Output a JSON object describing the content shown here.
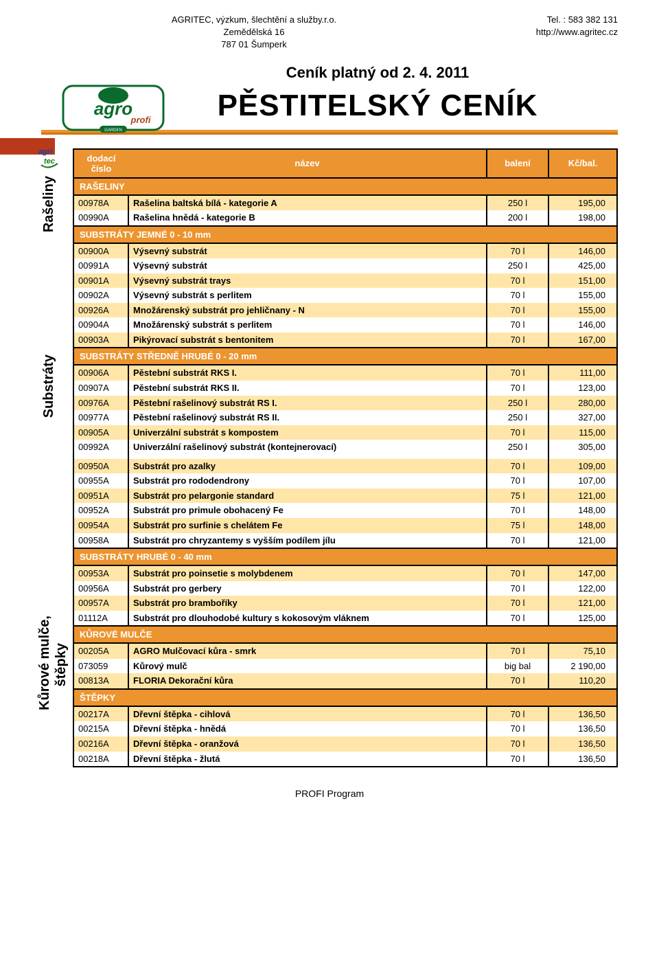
{
  "header": {
    "company": "AGRITEC, výzkum, šlechtění a služby.r.o.",
    "addr1": "Zemědělská 16",
    "addr2": "787 01 Šumperk",
    "tel": "Tel. : 583 382 131",
    "web": "http://www.agritec.cz"
  },
  "title": {
    "valid_from": "Ceník platný od 2. 4. 2011",
    "main": "PĚSTITELSKÝ CENÍK"
  },
  "side": {
    "raseliny": "Rašeliny",
    "substraty": "Substráty",
    "kurove": "Kůrové mulče,",
    "stepky": "štěpky"
  },
  "columns": {
    "code1": "dodací",
    "code2": "číslo",
    "name": "název",
    "pack": "balení",
    "price": "Kč/bal."
  },
  "sections": [
    {
      "title": "RAŠELINY",
      "rows": [
        {
          "c": "00978A",
          "n": "Rašelina baltská bílá - kategorie A",
          "p": "250 l",
          "v": "195,00"
        },
        {
          "c": "00990A",
          "n": "Rašelina hnědá - kategorie B",
          "p": "200 l",
          "v": "198,00"
        }
      ]
    },
    {
      "title": "SUBSTRÁTY JEMNÉ 0 - 10 mm",
      "rows": [
        {
          "c": "00900A",
          "n": "Výsevný substrát",
          "p": "70 l",
          "v": "146,00"
        },
        {
          "c": "00991A",
          "n": "Výsevný substrát",
          "p": "250 l",
          "v": "425,00"
        },
        {
          "c": "00901A",
          "n": "Výsevný substrát trays",
          "p": "70 l",
          "v": "151,00"
        },
        {
          "c": "00902A",
          "n": "Výsevný substrát s perlitem",
          "p": "70 l",
          "v": "155,00"
        },
        {
          "c": "00926A",
          "n": "Množárenský substrát pro jehličnany - N",
          "p": "70 l",
          "v": "155,00"
        },
        {
          "c": "00904A",
          "n": "Množárenský substrát s perlitem",
          "p": "70 l",
          "v": "146,00"
        },
        {
          "c": "00903A",
          "n": "Pikýrovací substrát s bentonitem",
          "p": "70 l",
          "v": "167,00"
        }
      ]
    },
    {
      "title": "SUBSTRÁTY STŘEDNĚ HRUBÉ 0 - 20 mm",
      "groups": [
        [
          {
            "c": "00906A",
            "n": "Pěstební substrát RKS I.",
            "p": "70 l",
            "v": "111,00"
          },
          {
            "c": "00907A",
            "n": "Pěstební substrát RKS II.",
            "p": "70 l",
            "v": "123,00"
          },
          {
            "c": "00976A",
            "n": "Pěstební rašelinový substrát RS I.",
            "p": "250 l",
            "v": "280,00"
          },
          {
            "c": "00977A",
            "n": "Pěstební rašelinový substrát RS II.",
            "p": "250 l",
            "v": "327,00"
          },
          {
            "c": "00905A",
            "n": "Univerzální substrát s kompostem",
            "p": "70 l",
            "v": "115,00"
          },
          {
            "c": "00992A",
            "n": "Univerzální rašelinový substrát (kontejnerovací)",
            "p": "250 l",
            "v": "305,00"
          }
        ],
        [
          {
            "c": "00950A",
            "n": "Substrát pro azalky",
            "p": "70 l",
            "v": "109,00"
          },
          {
            "c": "00955A",
            "n": "Substrát pro rododendrony",
            "p": "70 l",
            "v": "107,00"
          },
          {
            "c": "00951A",
            "n": "Substrát pro pelargonie standard",
            "p": "75 l",
            "v": "121,00"
          },
          {
            "c": "00952A",
            "n": "Substrát pro primule obohacený Fe",
            "p": "70 l",
            "v": "148,00"
          },
          {
            "c": "00954A",
            "n": "Substrát pro surfinie s chelátem Fe",
            "p": "75 l",
            "v": "148,00"
          },
          {
            "c": "00958A",
            "n": "Substrát pro chryzantemy s vyšším podílem jílu",
            "p": "70 l",
            "v": "121,00"
          }
        ]
      ]
    },
    {
      "title": "SUBSTRÁTY HRUBÉ 0 - 40 mm",
      "rows": [
        {
          "c": "00953A",
          "n": "Substrát pro poinsetie s molybdenem",
          "p": "70 l",
          "v": "147,00"
        },
        {
          "c": "00956A",
          "n": "Substrát pro gerbery",
          "p": "70 l",
          "v": "122,00"
        },
        {
          "c": "00957A",
          "n": "Substrát pro bramboříky",
          "p": "70 l",
          "v": "121,00"
        },
        {
          "c": "01112A",
          "n": "Substrát pro dlouhodobé kultury s kokosovým vláknem",
          "p": "70 l",
          "v": "125,00"
        }
      ]
    },
    {
      "title": "KŮROVÉ MULČE",
      "rows": [
        {
          "c": "00205A",
          "n": "AGRO Mulčovací kůra - smrk",
          "p": "70 l",
          "v": "75,10"
        },
        {
          "c": "073059",
          "n": "Kůrový mulč",
          "p": "big bal",
          "v": "2 190,00"
        },
        {
          "c": "00813A",
          "n": "FLORIA Dekorační kůra",
          "p": "70 l",
          "v": "110,20"
        }
      ]
    },
    {
      "title": "ŠTĚPKY",
      "rows": [
        {
          "c": "00217A",
          "n": "Dřevní štěpka - cihlová",
          "p": "70 l",
          "v": "136,50"
        },
        {
          "c": "00215A",
          "n": "Dřevní štěpka - hnědá",
          "p": "70 l",
          "v": "136,50"
        },
        {
          "c": "00216A",
          "n": "Dřevní štěpka - oranžová",
          "p": "70 l",
          "v": "136,50"
        },
        {
          "c": "00218A",
          "n": "Dřevní štěpka - žlutá",
          "p": "70 l",
          "v": "136,50"
        }
      ]
    }
  ],
  "footer": "PROFI Program",
  "style": {
    "orange": "#ec942f",
    "alt_row": "#ffe6a8",
    "border": "#000000",
    "header_text": "#ffffff",
    "body_text": "#000000"
  }
}
